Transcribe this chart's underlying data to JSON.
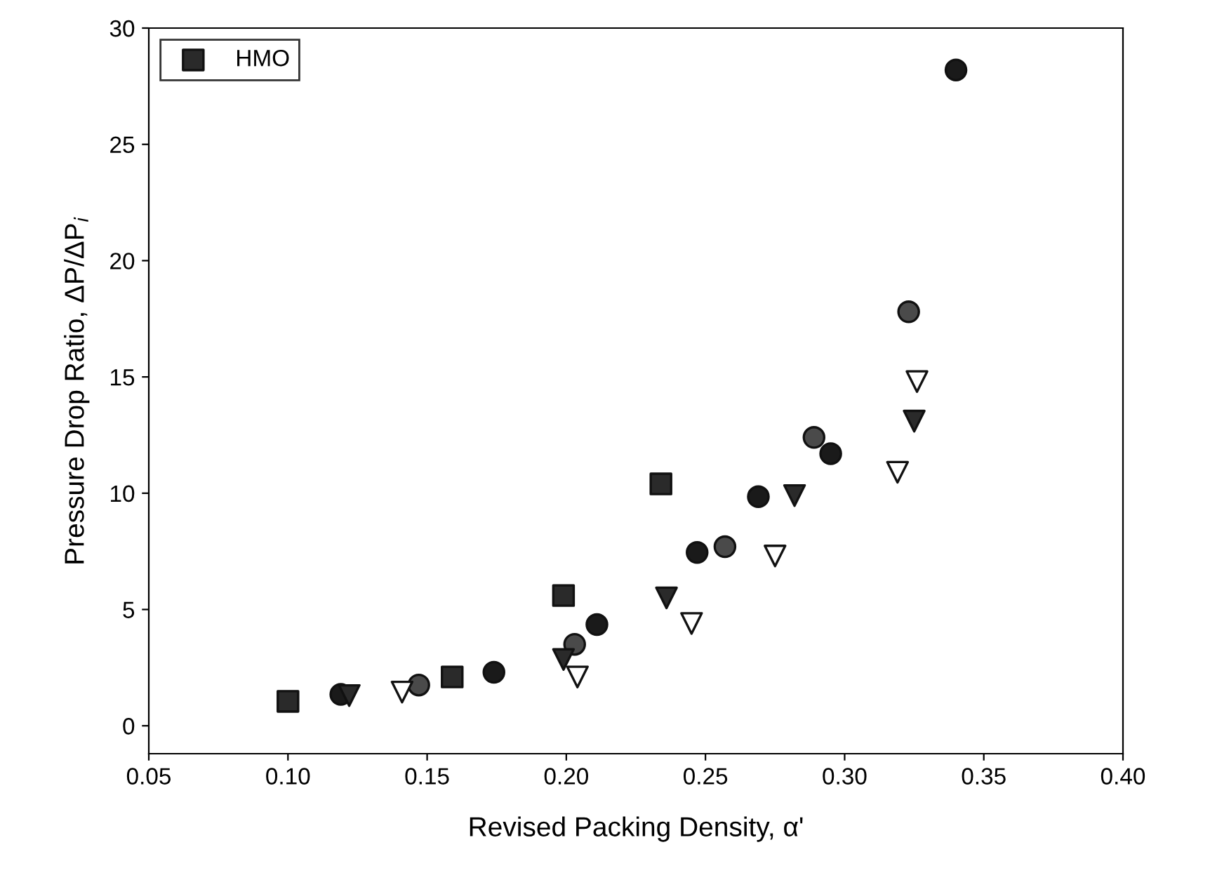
{
  "chart_data": {
    "type": "scatter",
    "xlabel": "Revised Packing Density, α'",
    "ylabel": "Pressure Drop Ratio, ΔP/ΔP$_{i}$",
    "xlim": [
      0.05,
      0.4
    ],
    "xticks": [
      {
        "value": 0.05,
        "label": "0.05"
      },
      {
        "value": 0.1,
        "label": "0.10"
      },
      {
        "value": 0.15,
        "label": "0.15"
      },
      {
        "value": 0.2,
        "label": "0.20"
      },
      {
        "value": 0.25,
        "label": "0.25"
      },
      {
        "value": 0.3,
        "label": "0.30"
      },
      {
        "value": 0.35,
        "label": "0.35"
      },
      {
        "value": 0.4,
        "label": "0.40"
      }
    ],
    "ylim": [
      -1.2,
      30
    ],
    "yticks": [
      0,
      5,
      10,
      15,
      20,
      25,
      30
    ],
    "grid": false,
    "legend": "top left",
    "series": [
      {
        "marker": "circle",
        "color": "#1a1a1a",
        "x": [
          0.119,
          0.174,
          0.211,
          0.247,
          0.269,
          0.295,
          0.34
        ],
        "values": [
          1.35,
          2.3,
          4.35,
          7.45,
          9.85,
          11.7,
          28.2
        ]
      },
      {
        "marker": "circle",
        "color": "#4a4a4a",
        "x": [
          0.147,
          0.203,
          0.257,
          0.289,
          0.323
        ],
        "values": [
          1.75,
          3.5,
          7.7,
          12.4,
          17.8
        ]
      },
      {
        "marker": "triangle",
        "color": "#2a2a2a",
        "x": [
          0.122,
          0.199,
          0.236,
          0.282,
          0.325
        ],
        "values": [
          1.3,
          2.85,
          5.5,
          9.9,
          13.1
        ]
      },
      {
        "marker": "triangle",
        "color": "#ffffff",
        "x": [
          0.141,
          0.204,
          0.245,
          0.275,
          0.319,
          0.326
        ],
        "values": [
          1.45,
          2.1,
          4.4,
          7.3,
          10.9,
          14.8
        ]
      },
      {
        "name": "HMO",
        "marker": "square",
        "color": "#2a2a2a",
        "x": [
          0.1,
          0.159,
          0.199,
          0.234
        ],
        "values": [
          1.05,
          2.1,
          5.6,
          10.4
        ]
      }
    ]
  }
}
